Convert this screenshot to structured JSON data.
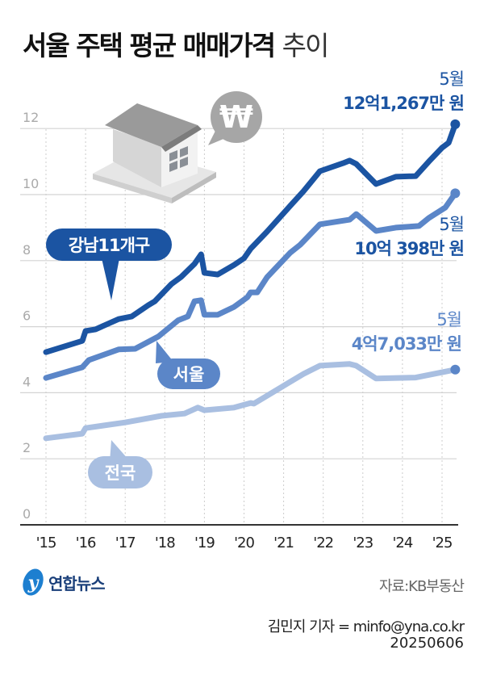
{
  "title": {
    "bold": "서울 주택 평균 매매가격",
    "light": "추이"
  },
  "source": "자료:KB부동산",
  "byline": "김민지 기자 = minfo@yna.co.kr",
  "date": "20250606",
  "logo": "연합뉴스",
  "illustration": {
    "icons": [
      "house-icon",
      "won-speech-bubble-icon"
    ],
    "won_symbol": "₩"
  },
  "chart_data": {
    "type": "line",
    "title": "서울 주택 평균 매매가격 추이",
    "xlabel": "",
    "ylabel": "",
    "x_ticks": [
      "'15",
      "'16",
      "'17",
      "'18",
      "'19",
      "'20",
      "'21",
      "'22",
      "'23",
      "'24",
      "'25"
    ],
    "y_ticks": [
      "0",
      "2",
      "4",
      "6",
      "8",
      "10",
      "12"
    ],
    "ylim": [
      0,
      12
    ],
    "xlim": [
      "2015-01",
      "2025-05"
    ],
    "grid": true,
    "series": [
      {
        "name": "강남11개구",
        "color": "#1b54a2",
        "end_label": {
          "month": "5월",
          "value": "12억1,267만 원"
        },
        "points": [
          [
            "2015-01",
            5.23
          ],
          [
            "2015-12",
            5.57
          ],
          [
            "2016-01",
            5.87
          ],
          [
            "2016-04",
            5.92
          ],
          [
            "2016-11",
            6.23
          ],
          [
            "2017-03",
            6.31
          ],
          [
            "2017-08",
            6.65
          ],
          [
            "2017-10",
            6.77
          ],
          [
            "2018-03",
            7.29
          ],
          [
            "2018-06",
            7.51
          ],
          [
            "2018-10",
            7.9
          ],
          [
            "2018-12",
            8.19
          ],
          [
            "2019-01",
            7.63
          ],
          [
            "2019-05",
            7.58
          ],
          [
            "2019-10",
            7.87
          ],
          [
            "2020-01",
            8.07
          ],
          [
            "2020-03",
            8.36
          ],
          [
            "2020-08",
            8.88
          ],
          [
            "2021-03",
            9.66
          ],
          [
            "2021-07",
            10.1
          ],
          [
            "2021-12",
            10.71
          ],
          [
            "2022-07",
            10.95
          ],
          [
            "2022-09",
            11.03
          ],
          [
            "2022-11",
            10.93
          ],
          [
            "2023-05",
            10.32
          ],
          [
            "2023-11",
            10.54
          ],
          [
            "2024-05",
            10.56
          ],
          [
            "2024-09",
            11.0
          ],
          [
            "2025-01",
            11.42
          ],
          [
            "2025-03",
            11.57
          ],
          [
            "2025-05",
            12.13
          ]
        ]
      },
      {
        "name": "서울",
        "color": "#5b86c8",
        "end_label": {
          "month": "5월",
          "value": "10억 398만 원"
        },
        "points": [
          [
            "2015-01",
            4.45
          ],
          [
            "2015-12",
            4.77
          ],
          [
            "2016-02",
            4.99
          ],
          [
            "2016-11",
            5.31
          ],
          [
            "2017-04",
            5.33
          ],
          [
            "2017-11",
            5.7
          ],
          [
            "2018-05",
            6.19
          ],
          [
            "2018-08",
            6.31
          ],
          [
            "2018-10",
            6.77
          ],
          [
            "2018-12",
            6.8
          ],
          [
            "2019-01",
            6.36
          ],
          [
            "2019-05",
            6.36
          ],
          [
            "2019-10",
            6.6
          ],
          [
            "2020-02",
            6.89
          ],
          [
            "2020-03",
            7.04
          ],
          [
            "2020-05",
            7.04
          ],
          [
            "2020-08",
            7.5
          ],
          [
            "2021-03",
            8.24
          ],
          [
            "2021-06",
            8.48
          ],
          [
            "2021-12",
            9.1
          ],
          [
            "2022-09",
            9.24
          ],
          [
            "2022-11",
            9.41
          ],
          [
            "2023-05",
            8.9
          ],
          [
            "2023-11",
            9.0
          ],
          [
            "2024-06",
            9.05
          ],
          [
            "2024-09",
            9.29
          ],
          [
            "2025-02",
            9.61
          ],
          [
            "2025-05",
            10.04
          ]
        ]
      },
      {
        "name": "전국",
        "color": "#a9bfe1",
        "end_label": {
          "month": "5월",
          "value": "4억7,033만 원"
        },
        "points": [
          [
            "2015-01",
            2.62
          ],
          [
            "2015-12",
            2.76
          ],
          [
            "2016-01",
            2.93
          ],
          [
            "2017-01",
            3.1
          ],
          [
            "2017-12",
            3.3
          ],
          [
            "2018-07",
            3.37
          ],
          [
            "2018-11",
            3.55
          ],
          [
            "2019-01",
            3.47
          ],
          [
            "2019-10",
            3.55
          ],
          [
            "2020-03",
            3.69
          ],
          [
            "2020-04",
            3.67
          ],
          [
            "2020-08",
            3.91
          ],
          [
            "2021-03",
            4.33
          ],
          [
            "2021-07",
            4.57
          ],
          [
            "2021-12",
            4.82
          ],
          [
            "2022-09",
            4.87
          ],
          [
            "2022-11",
            4.82
          ],
          [
            "2023-05",
            4.43
          ],
          [
            "2024-05",
            4.46
          ],
          [
            "2025-05",
            4.7
          ]
        ]
      }
    ]
  }
}
